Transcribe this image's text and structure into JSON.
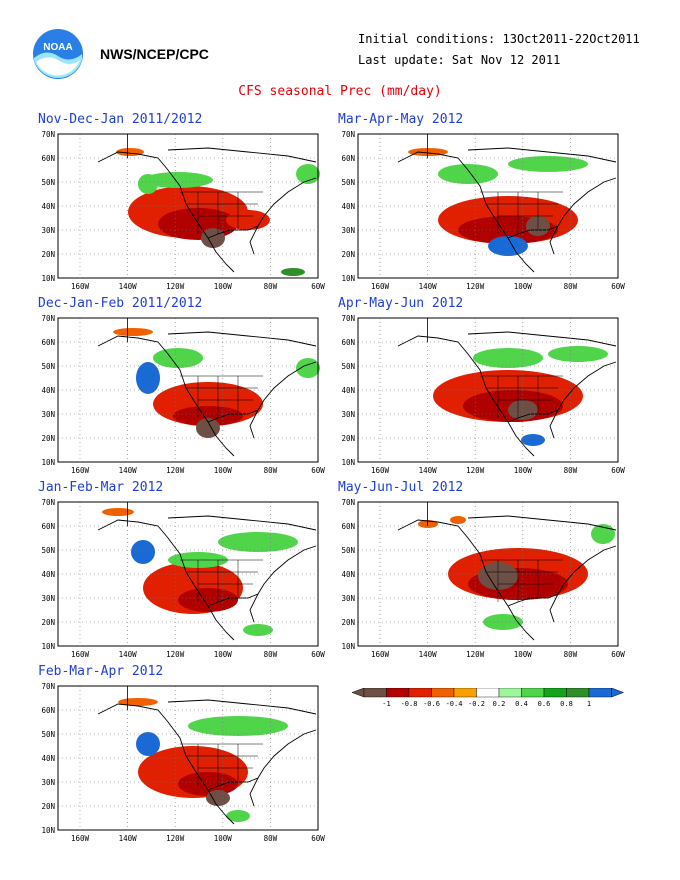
{
  "header": {
    "org": "NWS/NCEP/CPC",
    "logo_text": "NOAA",
    "initial_conditions": "Initial conditions: 13Oct2011-22Oct2011",
    "last_update": "Last update: Sat Nov 12 2011",
    "title": "CFS seasonal Prec (mm/day)"
  },
  "axes": {
    "lat_labels": [
      "70N",
      "60N",
      "50N",
      "40N",
      "30N",
      "20N",
      "10N"
    ],
    "lon_labels": [
      "160W",
      "140W",
      "120W",
      "100W",
      "80W",
      "60W"
    ]
  },
  "panels": [
    {
      "title": "Nov-Dec-Jan 2011/2012"
    },
    {
      "title": "Mar-Apr-May 2012"
    },
    {
      "title": "Dec-Jan-Feb 2011/2012"
    },
    {
      "title": "Apr-May-Jun 2012"
    },
    {
      "title": "Jan-Feb-Mar 2012"
    },
    {
      "title": "May-Jun-Jul 2012"
    },
    {
      "title": "Feb-Mar-Apr 2012"
    }
  ],
  "colorbar": {
    "labels": [
      "-1",
      "-0.8",
      "-0.6",
      "-0.4",
      "-0.2",
      "0.2",
      "0.4",
      "0.6",
      "0.8",
      "1"
    ],
    "colors": [
      "#6e4f45",
      "#b10000",
      "#e02000",
      "#f06000",
      "#f9a000",
      "#ffffff",
      "#9ef59a",
      "#4fd44a",
      "#14a31a",
      "#2f8d2a",
      "#1a6ad6"
    ]
  }
}
